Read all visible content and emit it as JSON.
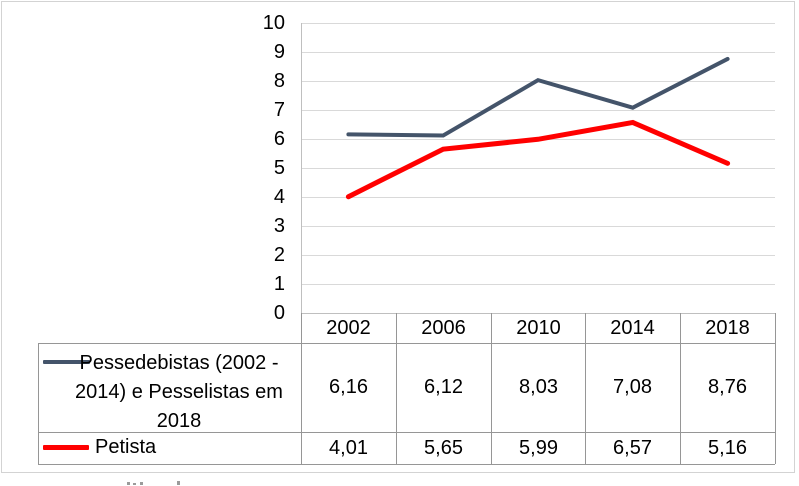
{
  "chart_data": {
    "type": "line",
    "title": "",
    "xlabel": "",
    "ylabel": "",
    "categories": [
      "2002",
      "2006",
      "2010",
      "2014",
      "2018"
    ],
    "series": [
      {
        "name": "Pessedebistas (2002 - 2014) e Pesselistas em 2018",
        "color": "#44546A",
        "values": [
          6.16,
          6.12,
          8.03,
          7.08,
          8.76
        ],
        "display": [
          "6,16",
          "6,12",
          "8,03",
          "7,08",
          "8,76"
        ]
      },
      {
        "name": "Petista",
        "color": "#FF0000",
        "values": [
          4.01,
          5.65,
          5.99,
          6.57,
          5.16
        ],
        "display": [
          "4,01",
          "5,65",
          "5,99",
          "6,57",
          "5,16"
        ]
      }
    ],
    "ylim": [
      0,
      10
    ],
    "yticks": [
      "0",
      "1",
      "2",
      "3",
      "4",
      "5",
      "6",
      "7",
      "8",
      "9",
      "10"
    ],
    "grid": "horizontal",
    "legend_position": "left-of-data-table"
  },
  "colors": {
    "gridline": "#D9D9D9",
    "axis_line": "#BFBFBF",
    "table_border": "#969696",
    "frame_border": "#D3D3D3",
    "text": "#000000",
    "background": "#FFFFFF"
  }
}
